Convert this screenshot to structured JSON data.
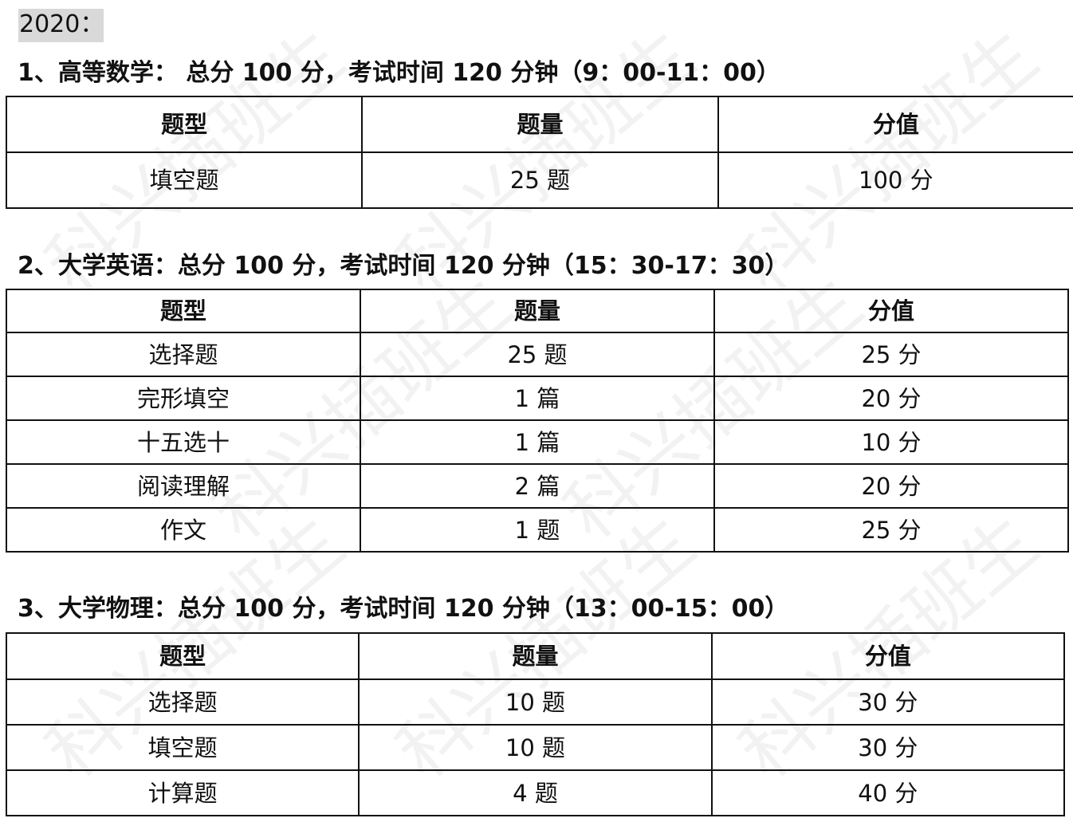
{
  "year_label": "2020：",
  "watermark": "科兴插班生",
  "sections": [
    {
      "title": "1、高等数学：  总分 100 分，考试时间 120 分钟（9：00-11：00）",
      "headers": [
        "题型",
        "题量",
        "分值"
      ],
      "rows": [
        [
          "填空题",
          "25 题",
          "100 分"
        ]
      ]
    },
    {
      "title": "2、大学英语：总分 100 分，考试时间 120 分钟（15：30-17：30）",
      "headers": [
        "题型",
        "题量",
        "分值"
      ],
      "rows": [
        [
          "选择题",
          "25 题",
          "25 分"
        ],
        [
          "完形填空",
          "1 篇",
          "20 分"
        ],
        [
          "十五选十",
          "1 篇",
          "10 分"
        ],
        [
          "阅读理解",
          "2 篇",
          "20 分"
        ],
        [
          "作文",
          "1 题",
          "25 分"
        ]
      ]
    },
    {
      "title": "3、大学物理：总分 100 分，考试时间 120 分钟（13：00-15：00）",
      "headers": [
        "题型",
        "题量",
        "分值"
      ],
      "rows": [
        [
          "选择题",
          "10 题",
          "30 分"
        ],
        [
          "填空题",
          "10 题",
          "30 分"
        ],
        [
          "计算题",
          "4 题",
          "40 分"
        ]
      ]
    }
  ]
}
